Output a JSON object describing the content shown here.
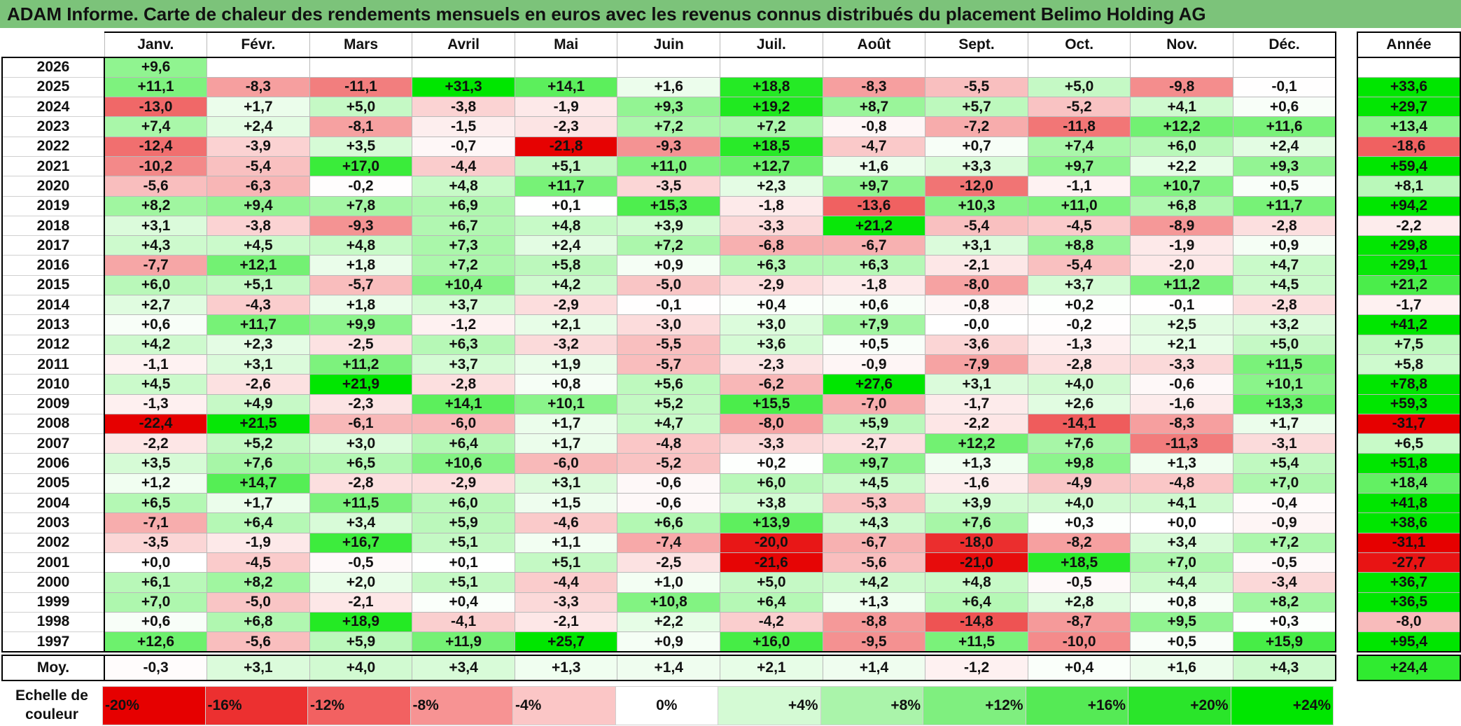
{
  "title": "ADAM Informe. Carte de chaleur des rendements mensuels en euros avec les revenus connus distribués du placement Belimo Holding AG",
  "colors": {
    "title_bg": "#7cc37a",
    "positive_max": "#00e600",
    "negative_max": "#e60000",
    "neutral": "#ffffff"
  },
  "chart_data": {
    "type": "heatmap",
    "title": "ADAM Informe. Carte de chaleur des rendements mensuels en euros avec les revenus connus distribués du placement Belimo Holding AG",
    "columns": [
      "Janv.",
      "Févr.",
      "Mars",
      "Avril",
      "Mai",
      "Juin",
      "Juil.",
      "Août",
      "Sept.",
      "Oct.",
      "Nov.",
      "Déc."
    ],
    "year_column": "Année",
    "rows": [
      {
        "year": "2026",
        "months": [
          "+9,6",
          "",
          "",
          "",
          "",
          "",
          "",
          "",
          "",
          "",
          "",
          ""
        ],
        "annual": ""
      },
      {
        "year": "2025",
        "months": [
          "+11,1",
          "-8,3",
          "-11,1",
          "+31,3",
          "+14,1",
          "+1,6",
          "+18,8",
          "-8,3",
          "-5,5",
          "+5,0",
          "-9,8",
          "-0,1"
        ],
        "annual": "+33,6"
      },
      {
        "year": "2024",
        "months": [
          "-13,0",
          "+1,7",
          "+5,0",
          "-3,8",
          "-1,9",
          "+9,3",
          "+19,2",
          "+8,7",
          "+5,7",
          "-5,2",
          "+4,1",
          "+0,6"
        ],
        "annual": "+29,7"
      },
      {
        "year": "2023",
        "months": [
          "+7,4",
          "+2,4",
          "-8,1",
          "-1,5",
          "-2,3",
          "+7,2",
          "+7,2",
          "-0,8",
          "-7,2",
          "-11,8",
          "+12,2",
          "+11,6"
        ],
        "annual": "+13,4"
      },
      {
        "year": "2022",
        "months": [
          "-12,4",
          "-3,9",
          "+3,5",
          "-0,7",
          "-21,8",
          "-9,3",
          "+18,5",
          "-4,7",
          "+0,7",
          "+7,4",
          "+6,0",
          "+2,4"
        ],
        "annual": "-18,6"
      },
      {
        "year": "2021",
        "months": [
          "-10,2",
          "-5,4",
          "+17,0",
          "-4,4",
          "+5,1",
          "+11,0",
          "+12,7",
          "+1,6",
          "+3,3",
          "+9,7",
          "+2,2",
          "+9,3"
        ],
        "annual": "+59,4"
      },
      {
        "year": "2020",
        "months": [
          "-5,6",
          "-6,3",
          "-0,2",
          "+4,8",
          "+11,7",
          "-3,5",
          "+2,3",
          "+9,7",
          "-12,0",
          "-1,1",
          "+10,7",
          "+0,5"
        ],
        "annual": "+8,1"
      },
      {
        "year": "2019",
        "months": [
          "+8,2",
          "+9,4",
          "+7,8",
          "+6,9",
          "+0,1",
          "+15,3",
          "-1,8",
          "-13,6",
          "+10,3",
          "+11,0",
          "+6,8",
          "+11,7"
        ],
        "annual": "+94,2"
      },
      {
        "year": "2018",
        "months": [
          "+3,1",
          "-3,8",
          "-9,3",
          "+6,7",
          "+4,8",
          "+3,9",
          "-3,3",
          "+21,2",
          "-5,4",
          "-4,5",
          "-8,9",
          "-2,8"
        ],
        "annual": "-2,2"
      },
      {
        "year": "2017",
        "months": [
          "+4,3",
          "+4,5",
          "+4,8",
          "+7,3",
          "+2,4",
          "+7,2",
          "-6,8",
          "-6,7",
          "+3,1",
          "+8,8",
          "-1,9",
          "+0,9"
        ],
        "annual": "+29,8"
      },
      {
        "year": "2016",
        "months": [
          "-7,7",
          "+12,1",
          "+1,8",
          "+7,2",
          "+5,8",
          "+0,9",
          "+6,3",
          "+6,3",
          "-2,1",
          "-5,4",
          "-2,0",
          "+4,7"
        ],
        "annual": "+29,1"
      },
      {
        "year": "2015",
        "months": [
          "+6,0",
          "+5,1",
          "-5,7",
          "+10,4",
          "+4,2",
          "-5,0",
          "-2,9",
          "-1,8",
          "-8,0",
          "+3,7",
          "+11,2",
          "+4,5"
        ],
        "annual": "+21,2"
      },
      {
        "year": "2014",
        "months": [
          "+2,7",
          "-4,3",
          "+1,8",
          "+3,7",
          "-2,9",
          "-0,1",
          "+0,4",
          "+0,6",
          "-0,8",
          "+0,2",
          "-0,1",
          "-2,8"
        ],
        "annual": "-1,7"
      },
      {
        "year": "2013",
        "months": [
          "+0,6",
          "+11,7",
          "+9,9",
          "-1,2",
          "+2,1",
          "-3,0",
          "+3,0",
          "+7,9",
          "-0,0",
          "-0,2",
          "+2,5",
          "+3,2"
        ],
        "annual": "+41,2"
      },
      {
        "year": "2012",
        "months": [
          "+4,2",
          "+2,3",
          "-2,5",
          "+6,3",
          "-3,2",
          "-5,5",
          "+3,6",
          "+0,5",
          "-3,6",
          "-1,3",
          "+2,1",
          "+5,0"
        ],
        "annual": "+7,5"
      },
      {
        "year": "2011",
        "months": [
          "-1,1",
          "+3,1",
          "+11,2",
          "+3,7",
          "+1,9",
          "-5,7",
          "-2,3",
          "-0,9",
          "-7,9",
          "-2,8",
          "-3,3",
          "+11,5"
        ],
        "annual": "+5,8"
      },
      {
        "year": "2010",
        "months": [
          "+4,5",
          "-2,6",
          "+21,9",
          "-2,8",
          "+0,8",
          "+5,6",
          "-6,2",
          "+27,6",
          "+3,1",
          "+4,0",
          "-0,6",
          "+10,1"
        ],
        "annual": "+78,8"
      },
      {
        "year": "2009",
        "months": [
          "-1,3",
          "+4,9",
          "-2,3",
          "+14,1",
          "+10,1",
          "+5,2",
          "+15,5",
          "-7,0",
          "-1,7",
          "+2,6",
          "-1,6",
          "+13,3"
        ],
        "annual": "+59,3"
      },
      {
        "year": "2008",
        "months": [
          "-22,4",
          "+21,5",
          "-6,1",
          "-6,0",
          "+1,7",
          "+4,7",
          "-8,0",
          "+5,9",
          "-2,2",
          "-14,1",
          "-8,3",
          "+1,7"
        ],
        "annual": "-31,7"
      },
      {
        "year": "2007",
        "months": [
          "-2,2",
          "+5,2",
          "+3,0",
          "+6,4",
          "+1,7",
          "-4,8",
          "-3,3",
          "-2,7",
          "+12,2",
          "+7,6",
          "-11,3",
          "-3,1"
        ],
        "annual": "+6,5"
      },
      {
        "year": "2006",
        "months": [
          "+3,5",
          "+7,6",
          "+6,5",
          "+10,6",
          "-6,0",
          "-5,2",
          "+0,2",
          "+9,7",
          "+1,3",
          "+9,8",
          "+1,3",
          "+5,4"
        ],
        "annual": "+51,8"
      },
      {
        "year": "2005",
        "months": [
          "+1,2",
          "+14,7",
          "-2,8",
          "-2,9",
          "+3,1",
          "-0,6",
          "+6,0",
          "+4,5",
          "-1,6",
          "-4,9",
          "-4,8",
          "+7,0"
        ],
        "annual": "+18,4"
      },
      {
        "year": "2004",
        "months": [
          "+6,5",
          "+1,7",
          "+11,5",
          "+6,0",
          "+1,5",
          "-0,6",
          "+3,8",
          "-5,3",
          "+3,9",
          "+4,0",
          "+4,1",
          "-0,4"
        ],
        "annual": "+41,8"
      },
      {
        "year": "2003",
        "months": [
          "-7,1",
          "+6,4",
          "+3,4",
          "+5,9",
          "-4,6",
          "+6,6",
          "+13,9",
          "+4,3",
          "+7,6",
          "+0,3",
          "+0,0",
          "-0,9"
        ],
        "annual": "+38,6"
      },
      {
        "year": "2002",
        "months": [
          "-3,5",
          "-1,9",
          "+16,7",
          "+5,1",
          "+1,1",
          "-7,4",
          "-20,0",
          "-6,7",
          "-18,0",
          "-8,2",
          "+3,4",
          "+7,2"
        ],
        "annual": "-31,1"
      },
      {
        "year": "2001",
        "months": [
          "+0,0",
          "-4,5",
          "-0,5",
          "+0,1",
          "+5,1",
          "-2,5",
          "-21,6",
          "-5,6",
          "-21,0",
          "+18,5",
          "+7,0",
          "-0,5"
        ],
        "annual": "-27,7"
      },
      {
        "year": "2000",
        "months": [
          "+6,1",
          "+8,2",
          "+2,0",
          "+5,1",
          "-4,4",
          "+1,0",
          "+5,0",
          "+4,2",
          "+4,8",
          "-0,5",
          "+4,4",
          "-3,4"
        ],
        "annual": "+36,7"
      },
      {
        "year": "1999",
        "months": [
          "+7,0",
          "-5,0",
          "-2,1",
          "+0,4",
          "-3,3",
          "+10,8",
          "+6,4",
          "+1,3",
          "+6,4",
          "+2,8",
          "+0,8",
          "+8,2"
        ],
        "annual": "+36,5"
      },
      {
        "year": "1998",
        "months": [
          "+0,6",
          "+6,8",
          "+18,9",
          "-4,1",
          "-2,1",
          "+2,2",
          "-4,2",
          "-8,8",
          "-14,8",
          "-8,7",
          "+9,5",
          "+0,3"
        ],
        "annual": "-8,0"
      },
      {
        "year": "1997",
        "months": [
          "+12,6",
          "-5,6",
          "+5,9",
          "+11,9",
          "+25,7",
          "+0,9",
          "+16,0",
          "-9,5",
          "+11,5",
          "-10,0",
          "+0,5",
          "+15,9"
        ],
        "annual": "+95,4"
      }
    ],
    "average": {
      "label": "Moy.",
      "months": [
        "-0,3",
        "+3,1",
        "+4,0",
        "+3,4",
        "+1,3",
        "+1,4",
        "+2,1",
        "+1,4",
        "-1,2",
        "+0,4",
        "+1,6",
        "+4,3"
      ],
      "annual": "+24,4"
    },
    "color_scale": {
      "label": "Echelle de couleur",
      "entries": [
        {
          "label": "-20%",
          "value": -20,
          "color": "#e60000"
        },
        {
          "label": "-16%",
          "value": -16,
          "color": "#ec3030"
        },
        {
          "label": "-12%",
          "value": -12,
          "color": "#f26161"
        },
        {
          "label": "-8%",
          "value": -8,
          "color": "#f79393"
        },
        {
          "label": "-4%",
          "value": -4,
          "color": "#fbc6c6"
        },
        {
          "label": "0%",
          "value": 0,
          "color": "#ffffff"
        },
        {
          "label": "+4%",
          "value": 4,
          "color": "#d4fad4"
        },
        {
          "label": "+8%",
          "value": 8,
          "color": "#aaf4aa"
        },
        {
          "label": "+12%",
          "value": 12,
          "color": "#7fef7f"
        },
        {
          "label": "+16%",
          "value": 16,
          "color": "#55ea55"
        },
        {
          "label": "+20%",
          "value": 20,
          "color": "#2ae52a"
        },
        {
          "label": "+24%",
          "value": 24,
          "color": "#00e600"
        }
      ]
    }
  }
}
